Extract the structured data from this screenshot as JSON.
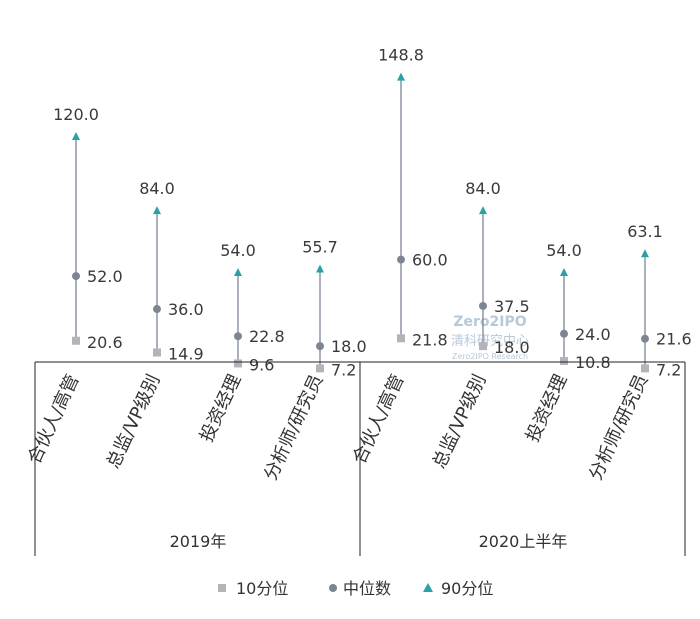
{
  "colors": {
    "p10": "#b3b3ba",
    "median": "#7d8594",
    "p90": "#2aa0a8",
    "line": "#7d8594",
    "axis": "#222222"
  },
  "watermark": {
    "line1": "Zero2IPO",
    "line2": "清科研究中心",
    "line3": "Zero2IPO Research"
  },
  "chart_data": {
    "type": "range",
    "groups": [
      "2019年",
      "2020上半年"
    ],
    "categories": [
      "合伙人/高管",
      "总监/VP级别",
      "投资经理",
      "分析师/研究员",
      "合伙人/高管",
      "总监/VP级别",
      "投资经理",
      "分析师/研究员"
    ],
    "series": [
      {
        "name": "10分位",
        "values": [
          20.6,
          14.9,
          9.6,
          7.2,
          21.8,
          18.0,
          10.8,
          7.2
        ]
      },
      {
        "name": "中位数",
        "values": [
          52.0,
          36.0,
          22.8,
          18.0,
          60.0,
          37.5,
          24.0,
          21.6
        ]
      },
      {
        "name": "90分位",
        "values": [
          120.0,
          84.0,
          54.0,
          55.7,
          148.8,
          84.0,
          54.0,
          63.1
        ]
      }
    ],
    "labels": {
      "p10": [
        "20.6",
        "14.9",
        "9.6",
        "7.2",
        "21.8",
        "18.0",
        "10.8",
        "7.2"
      ],
      "median": [
        "52.0",
        "36.0",
        "22.8",
        "18.0",
        "60.0",
        "37.5",
        "24.0",
        "21.6"
      ],
      "p90": [
        "120.0",
        "84.0",
        "54.0",
        "55.7",
        "148.8",
        "84.0",
        "54.0",
        "63.1"
      ]
    },
    "legend": [
      "10分位",
      "中位数",
      "90分位"
    ],
    "legend_position": "bottom",
    "grid": false
  }
}
